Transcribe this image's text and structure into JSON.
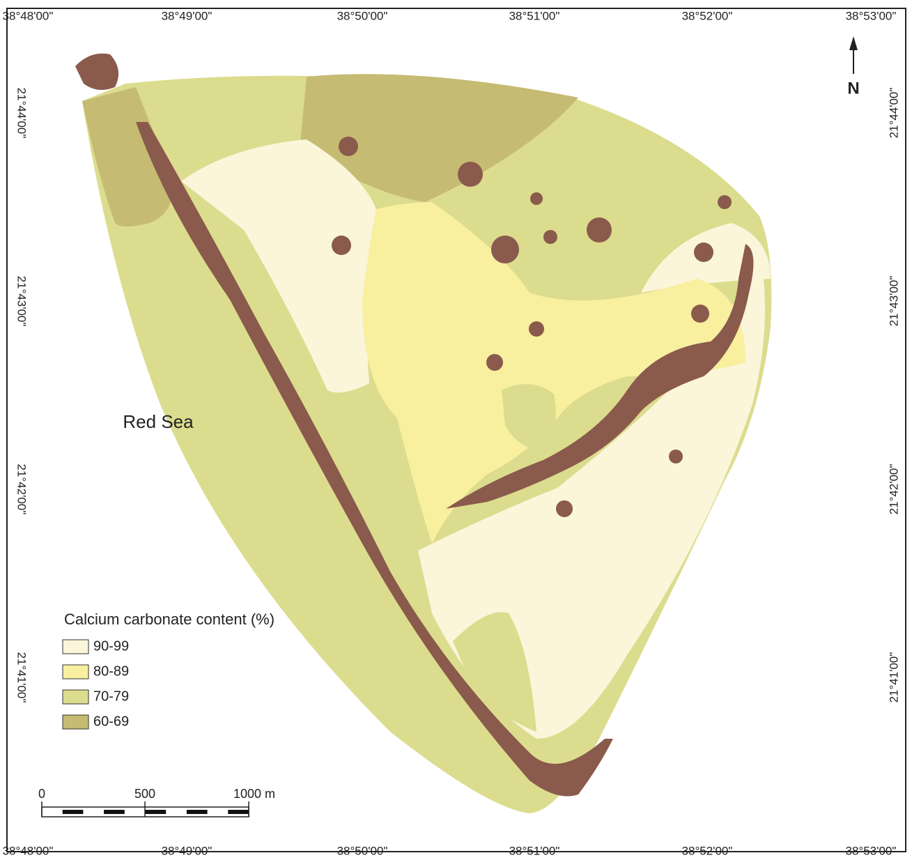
{
  "frame": {
    "top_labels": [
      "38°48'00\"",
      "38°49'00\"",
      "38°50'00\"",
      "38°51'00\"",
      "38°52'00\"",
      "38°53'00\""
    ],
    "bottom_labels": [
      "38°48'00\"",
      "38°49'00\"",
      "38°50'00\"",
      "38°51'00\"",
      "38°52'00\"",
      "38°53'00\""
    ],
    "left_labels": [
      "21°44'00\"",
      "21°43'00\"",
      "21°42'00\"",
      "21°41'00\""
    ],
    "right_labels": [
      "21°44'00\"",
      "21°43'00\"",
      "21°42'00\"",
      "21°41'00\""
    ]
  },
  "sea_label": "Red Sea",
  "legend": {
    "title": "Calcium carbonate content (%)",
    "items": [
      {
        "label": "90-99",
        "color": "#fbf5da"
      },
      {
        "label": "80-89",
        "color": "#f8ef9f"
      },
      {
        "label": "70-79",
        "color": "#dcdc8e"
      },
      {
        "label": "60-69",
        "color": "#c5bb72"
      }
    ]
  },
  "scale_bar": {
    "labels": [
      "0",
      "500",
      "1000 m"
    ]
  },
  "north_arrow": "N"
}
